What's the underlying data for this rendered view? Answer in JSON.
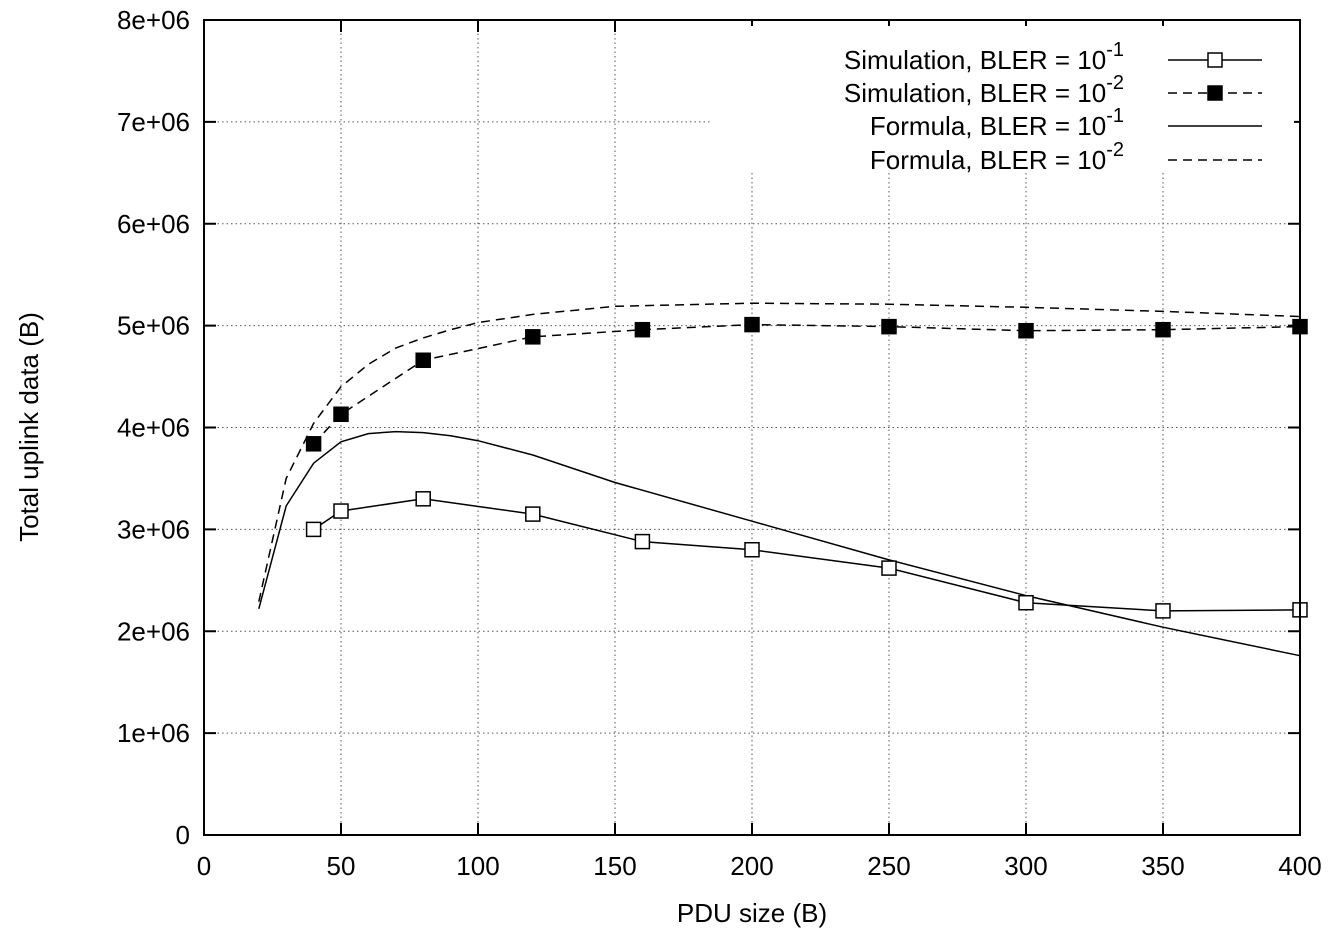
{
  "chart_data": {
    "type": "line",
    "xlabel": "PDU size (B)",
    "ylabel": "Total uplink data (B)",
    "xlim": [
      0,
      400
    ],
    "ylim": [
      0,
      8000000
    ],
    "x_ticks": [
      "0",
      "50",
      "100",
      "150",
      "200",
      "250",
      "300",
      "350",
      "400"
    ],
    "y_ticks": [
      "0",
      "1e+06",
      "2e+06",
      "3e+06",
      "4e+06",
      "5e+06",
      "6e+06",
      "7e+06",
      "8e+06"
    ],
    "grid": true,
    "legend_position": "top-right",
    "series": [
      {
        "name_base": "Simulation, BLER = 10",
        "name_exp": "-1",
        "style": "solid",
        "marker": "open-square",
        "x": [
          40,
          50,
          80,
          120,
          160,
          200,
          250,
          300,
          350,
          400
        ],
        "y": [
          3000000,
          3180000,
          3300000,
          3150000,
          2880000,
          2800000,
          2620000,
          2280000,
          2200000,
          2210000
        ]
      },
      {
        "name_base": "Simulation, BLER = 10",
        "name_exp": "-2",
        "style": "dashed",
        "marker": "filled-square",
        "x": [
          40,
          50,
          80,
          120,
          160,
          200,
          250,
          300,
          350,
          400
        ],
        "y": [
          3840000,
          4130000,
          4660000,
          4890000,
          4960000,
          5010000,
          4990000,
          4950000,
          4960000,
          4990000
        ]
      },
      {
        "name_base": "Formula, BLER = 10",
        "name_exp": "-1",
        "style": "solid",
        "marker": "none",
        "x": [
          20,
          30,
          40,
          50,
          60,
          70,
          80,
          90,
          100,
          120,
          150,
          200,
          250,
          300,
          350,
          400
        ],
        "y": [
          2220000,
          3230000,
          3650000,
          3860000,
          3940000,
          3960000,
          3950000,
          3920000,
          3870000,
          3730000,
          3460000,
          3080000,
          2700000,
          2350000,
          2040000,
          1760000
        ]
      },
      {
        "name_base": "Formula, BLER = 10",
        "name_exp": "-2",
        "style": "dashed",
        "marker": "none",
        "x": [
          20,
          30,
          40,
          50,
          60,
          70,
          80,
          90,
          100,
          120,
          150,
          200,
          250,
          300,
          350,
          400
        ],
        "y": [
          2290000,
          3500000,
          4040000,
          4400000,
          4620000,
          4780000,
          4880000,
          4960000,
          5030000,
          5110000,
          5190000,
          5220000,
          5210000,
          5180000,
          5140000,
          5090000
        ]
      }
    ]
  }
}
